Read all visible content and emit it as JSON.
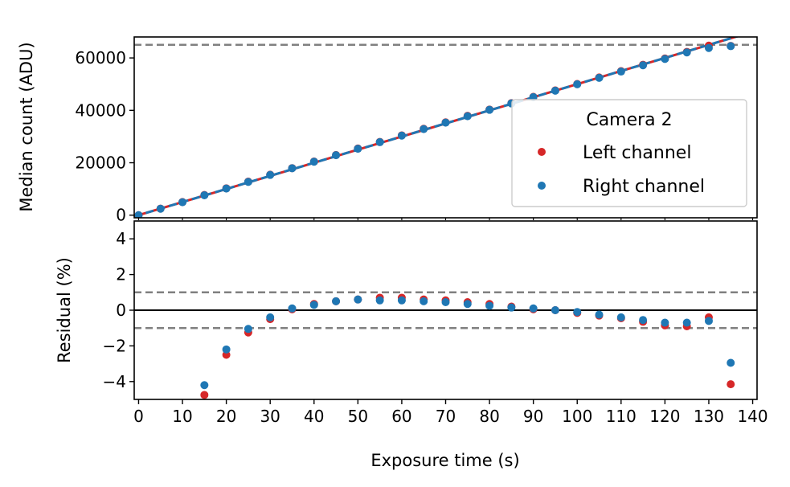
{
  "chart_data": {
    "type": "scatter",
    "xlabel": "Exposure time (s)",
    "xlim": [
      -1,
      141
    ],
    "xticks": [
      0,
      10,
      20,
      30,
      40,
      50,
      60,
      70,
      80,
      90,
      100,
      110,
      120,
      130,
      140
    ],
    "colors": {
      "left": "#d62728",
      "right": "#1f77b4",
      "reference": "#808080",
      "zero_line": "#000000"
    },
    "top_panel": {
      "ylabel": "Median count (ADU)",
      "ylim": [
        -1000,
        68000
      ],
      "yticks": [
        0,
        20000,
        40000,
        60000
      ],
      "saturation_line": 65000,
      "legend": {
        "title": "Camera 2",
        "placement": "lower-right",
        "entries": [
          "Left channel",
          "Right channel"
        ]
      },
      "fit_slope": 500,
      "series": [
        {
          "name": "Left channel",
          "x": [
            0,
            5,
            10,
            15,
            20,
            25,
            30,
            35,
            40,
            45,
            50,
            55,
            60,
            65,
            70,
            75,
            80,
            85,
            90,
            95,
            100,
            105,
            110,
            115,
            120,
            125,
            130,
            135
          ],
          "y": [
            0,
            2500,
            5000,
            7700,
            10250,
            12800,
            15450,
            17950,
            20450,
            22950,
            25450,
            27950,
            30450,
            32950,
            35400,
            37900,
            40300,
            42750,
            45150,
            47600,
            50050,
            52550,
            54950,
            57400,
            59800,
            62300,
            64700,
            64600
          ]
        },
        {
          "name": "Right channel",
          "x": [
            0,
            5,
            10,
            15,
            20,
            25,
            30,
            35,
            40,
            45,
            50,
            55,
            60,
            65,
            70,
            75,
            80,
            85,
            90,
            95,
            100,
            105,
            110,
            115,
            120,
            125,
            130,
            135
          ],
          "y": [
            0,
            2450,
            4950,
            7600,
            10150,
            12700,
            15350,
            17900,
            20400,
            22900,
            25350,
            27850,
            30350,
            32850,
            35300,
            37750,
            40200,
            42650,
            45050,
            47500,
            49950,
            52400,
            54800,
            57200,
            59600,
            62100,
            63800,
            64500
          ]
        }
      ]
    },
    "bottom_panel": {
      "ylabel": "Residual (%)",
      "ylim": [
        -5,
        5
      ],
      "yticks": [
        -4,
        -2,
        0,
        2,
        4
      ],
      "ytick_labels": [
        "−4",
        "−2",
        "0",
        "2",
        "4"
      ],
      "reference_lines": [
        1,
        -1
      ],
      "series": [
        {
          "name": "Left channel",
          "x": [
            15,
            20,
            25,
            30,
            35,
            40,
            45,
            50,
            55,
            60,
            65,
            70,
            75,
            80,
            85,
            90,
            95,
            100,
            105,
            110,
            115,
            120,
            125,
            130,
            135
          ],
          "y": [
            -4.75,
            -2.5,
            -1.25,
            -0.5,
            0.05,
            0.35,
            0.5,
            0.6,
            0.7,
            0.7,
            0.6,
            0.55,
            0.45,
            0.35,
            0.2,
            0.05,
            0.0,
            -0.15,
            -0.3,
            -0.45,
            -0.65,
            -0.85,
            -0.9,
            -0.4,
            -4.15
          ]
        },
        {
          "name": "Right channel",
          "x": [
            15,
            20,
            25,
            30,
            35,
            40,
            45,
            50,
            55,
            60,
            65,
            70,
            75,
            80,
            85,
            90,
            95,
            100,
            105,
            110,
            115,
            120,
            125,
            130,
            135
          ],
          "y": [
            -4.2,
            -2.2,
            -1.05,
            -0.4,
            0.1,
            0.3,
            0.5,
            0.6,
            0.55,
            0.55,
            0.5,
            0.45,
            0.35,
            0.25,
            0.15,
            0.1,
            0.0,
            -0.1,
            -0.25,
            -0.4,
            -0.55,
            -0.7,
            -0.7,
            -0.6,
            -2.95
          ]
        }
      ]
    }
  }
}
